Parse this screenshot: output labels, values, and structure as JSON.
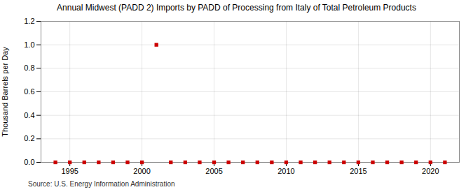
{
  "chart_data": {
    "type": "scatter",
    "title": "Annual Midwest (PADD 2) Imports by PADD of Processing from Italy of Total Petroleum Products",
    "ylabel": "Thousand Barrels per Day",
    "annotations": [
      "Source: U.S. Energy Information Administration"
    ],
    "x": [
      1994,
      1995,
      1996,
      1997,
      1998,
      1999,
      2000,
      2001,
      2002,
      2003,
      2004,
      2005,
      2006,
      2007,
      2008,
      2009,
      2010,
      2011,
      2012,
      2013,
      2014,
      2015,
      2016,
      2017,
      2018,
      2019,
      2020,
      2021
    ],
    "values": [
      0.0,
      0.0,
      0.0,
      0.0,
      0.0,
      0.0,
      0.0,
      1.0,
      0.0,
      0.0,
      0.0,
      0.0,
      0.0,
      0.0,
      0.0,
      0.0,
      0.0,
      0.0,
      0.0,
      0.0,
      0.0,
      0.0,
      0.0,
      0.0,
      0.0,
      0.0,
      0.0,
      0.0
    ],
    "color": "#cc0000",
    "marker": "square",
    "xlim": [
      1993,
      2022
    ],
    "xticks": [
      1995,
      2000,
      2005,
      2010,
      2015,
      2020
    ],
    "ylim": [
      0,
      1.2
    ],
    "yticks": [
      {
        "value": 0,
        "label": "0.0"
      },
      0.2,
      0.4,
      0.6,
      0.8,
      {
        "value": 1,
        "label": "1.0"
      },
      1.2
    ],
    "grid": true
  }
}
